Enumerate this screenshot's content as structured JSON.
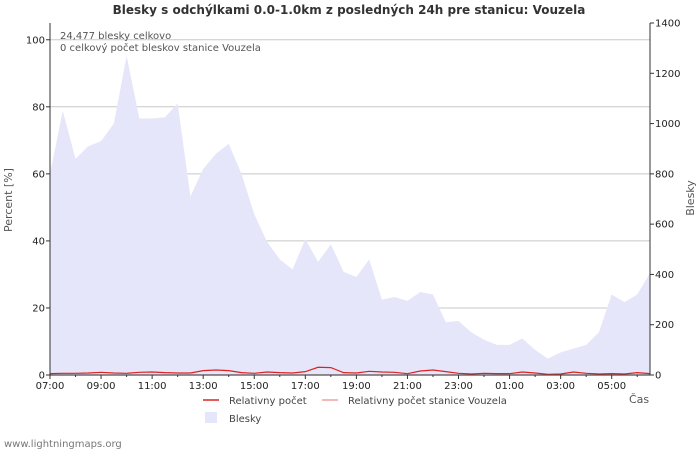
{
  "chart_data": {
    "type": "area",
    "title": "Blesky s odchýlkami 0.0-1.0km z posledných 24h pre stanicu: Vouzela",
    "xlabel": "Čas",
    "ylabel_left": "Percent   [%]",
    "ylabel_right": "Blesky",
    "ylim_left": [
      0,
      105
    ],
    "ylim_right": [
      0,
      1400
    ],
    "y_ticks_left": [
      "0",
      "20",
      "40",
      "60",
      "80",
      "100"
    ],
    "y_ticks_right": [
      "0",
      "200",
      "400",
      "600",
      "800",
      "1000",
      "1200",
      "1400"
    ],
    "x_tick_labels": [
      "07:00",
      "09:00",
      "11:00",
      "13:00",
      "15:00",
      "17:00",
      "19:00",
      "21:00",
      "23:00",
      "01:00",
      "03:00",
      "05:00"
    ],
    "info_lines": [
      "24,477 blesky celkovo",
      "0 celkový počet bleskov stanice Vouzela"
    ],
    "x_hours": [
      0,
      0.5,
      1,
      1.5,
      2,
      2.5,
      3,
      3.5,
      4,
      4.5,
      5,
      5.5,
      6,
      6.5,
      7,
      7.5,
      8,
      8.5,
      9,
      9.5,
      10,
      10.5,
      11,
      11.5,
      12,
      12.5,
      13,
      13.5,
      14,
      14.5,
      15,
      15.5,
      16,
      16.5,
      17,
      17.5,
      18,
      18.5,
      19,
      19.5,
      20,
      20.5,
      21,
      21.5,
      22,
      22.5,
      23,
      23.5
    ],
    "series": [
      {
        "name": "Blesky",
        "axis": "right",
        "color": "#e6e6fa",
        "values": [
          800,
          1050,
          860,
          910,
          930,
          1000,
          1270,
          1020,
          1020,
          1025,
          1080,
          710,
          820,
          880,
          920,
          800,
          640,
          530,
          460,
          420,
          540,
          450,
          520,
          410,
          390,
          460,
          300,
          310,
          295,
          330,
          320,
          210,
          215,
          170,
          140,
          120,
          120,
          145,
          100,
          65,
          90,
          105,
          120,
          170,
          320,
          290,
          320,
          405
        ]
      },
      {
        "name": "Relativny počet",
        "axis": "left",
        "color": "#dd2222",
        "values": [
          0.4,
          0.5,
          0.5,
          0.6,
          0.8,
          0.6,
          0.5,
          0.8,
          0.9,
          0.7,
          0.6,
          0.6,
          1.3,
          1.5,
          1.3,
          0.7,
          0.5,
          0.9,
          0.7,
          0.6,
          1.0,
          2.3,
          2.2,
          0.7,
          0.6,
          1.1,
          0.9,
          0.8,
          0.4,
          1.2,
          1.5,
          1.0,
          0.5,
          0.3,
          0.5,
          0.4,
          0.4,
          0.9,
          0.6,
          0.2,
          0.3,
          0.9,
          0.5,
          0.3,
          0.4,
          0.3,
          0.7,
          0.4
        ]
      },
      {
        "name": "Relativny počet stanice Vouzela",
        "axis": "left",
        "color": "#f0a0a0",
        "values": [
          0,
          0,
          0,
          0,
          0,
          0,
          0,
          0,
          0,
          0,
          0,
          0,
          0,
          0,
          0,
          0,
          0,
          0,
          0,
          0,
          0,
          0,
          0,
          0,
          0,
          0,
          0,
          0,
          0,
          0,
          0,
          0,
          0,
          0,
          0,
          0,
          0,
          0,
          0,
          0,
          0,
          0,
          0,
          0,
          0,
          0,
          0,
          0
        ]
      }
    ],
    "legend": [
      {
        "label": "Relativny počet",
        "color": "#dd2222",
        "kind": "line"
      },
      {
        "label": "Relativny počet stanice Vouzela",
        "color": "#f0a0a0",
        "kind": "line"
      },
      {
        "label": "Blesky",
        "color": "#e6e6fa",
        "kind": "area"
      }
    ]
  },
  "footer": "www.lightningmaps.org"
}
